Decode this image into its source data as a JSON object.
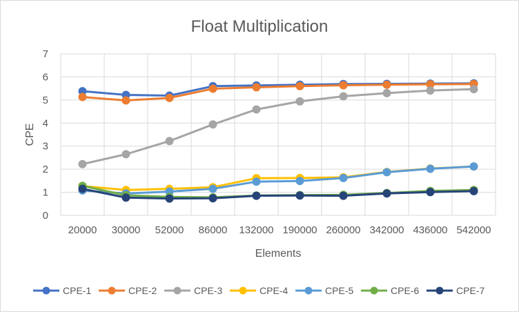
{
  "chart_data": {
    "type": "line",
    "title": "Float Multiplication",
    "xlabel": "Elements",
    "ylabel": "CPE",
    "ylim": [
      0,
      7
    ],
    "yticks": [
      "0",
      "1",
      "2",
      "3",
      "4",
      "5",
      "6",
      "7"
    ],
    "grid": true,
    "legend_position": "bottom",
    "categories": [
      "20000",
      "30000",
      "52000",
      "86000",
      "132000",
      "190000",
      "260000",
      "342000",
      "436000",
      "542000"
    ],
    "series": [
      {
        "name": "CPE-1",
        "color": "#4472C4",
        "values": [
          5.38,
          5.22,
          5.19,
          5.6,
          5.63,
          5.66,
          5.69,
          5.7,
          5.71,
          5.72
        ]
      },
      {
        "name": "CPE-2",
        "color": "#ED7D31",
        "values": [
          5.13,
          4.98,
          5.09,
          5.49,
          5.55,
          5.6,
          5.64,
          5.66,
          5.68,
          5.69
        ]
      },
      {
        "name": "CPE-3",
        "color": "#A5A5A5",
        "values": [
          2.22,
          2.65,
          3.22,
          3.94,
          4.59,
          4.94,
          5.16,
          5.3,
          5.41,
          5.47
        ]
      },
      {
        "name": "CPE-4",
        "color": "#FFC000",
        "values": [
          1.27,
          1.1,
          1.15,
          1.22,
          1.61,
          1.62,
          1.65,
          1.88,
          2.03,
          2.12
        ]
      },
      {
        "name": "CPE-5",
        "color": "#5B9BD5",
        "values": [
          1.08,
          0.95,
          1.03,
          1.15,
          1.46,
          1.49,
          1.62,
          1.87,
          2.02,
          2.12
        ]
      },
      {
        "name": "CPE-6",
        "color": "#70AD47",
        "values": [
          1.28,
          0.87,
          0.8,
          0.78,
          0.86,
          0.88,
          0.89,
          0.97,
          1.06,
          1.1
        ]
      },
      {
        "name": "CPE-7",
        "color": "#264478",
        "values": [
          1.15,
          0.77,
          0.73,
          0.74,
          0.85,
          0.86,
          0.85,
          0.95,
          1.01,
          1.05
        ]
      }
    ]
  }
}
